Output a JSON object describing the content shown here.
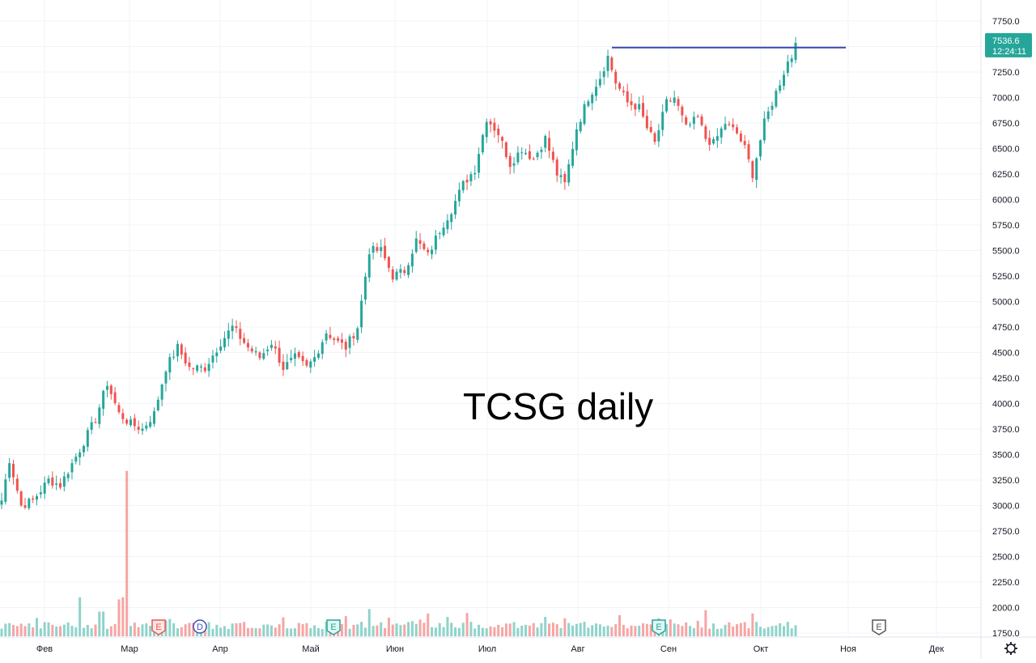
{
  "chart_data": {
    "type": "candlestick",
    "annotation": "TCSG daily",
    "y_axis": {
      "ticks": [
        "7750.0",
        "7500.0",
        "7250.0",
        "7000.0",
        "6750.0",
        "6500.0",
        "6250.0",
        "6000.0",
        "5750.0",
        "5500.0",
        "5250.0",
        "5000.0",
        "4750.0",
        "4500.0",
        "4250.0",
        "4000.0",
        "3750.0",
        "3500.0",
        "3250.0",
        "3000.0",
        "2750.0",
        "2500.0",
        "2250.0",
        "2000.0",
        "1750.0"
      ],
      "range": [
        1700,
        7850
      ],
      "position": "right"
    },
    "x_axis": {
      "ticks": [
        "Фев",
        "Мар",
        "Апр",
        "Май",
        "Июн",
        "Июл",
        "Авг",
        "Сен",
        "Окт",
        "Ноя",
        "Дек"
      ]
    },
    "current_price": {
      "value": "7536.6",
      "time": "12:24:11",
      "color": "#26a69a"
    },
    "resistance_line": {
      "value": 7490,
      "color": "#3949ab"
    },
    "grid": true,
    "colors": {
      "up": "#26a69a",
      "down": "#ef5350",
      "vol_up": "#8fd3ca",
      "vol_down": "#f6a5a4",
      "grid": "#f0f3fa"
    },
    "price_waypoints": [
      [
        0,
        3050
      ],
      [
        2,
        3450
      ],
      [
        5,
        3000
      ],
      [
        8,
        3050
      ],
      [
        12,
        3250
      ],
      [
        15,
        3200
      ],
      [
        20,
        3550
      ],
      [
        24,
        3850
      ],
      [
        27,
        4200
      ],
      [
        30,
        3900
      ],
      [
        33,
        3800
      ],
      [
        36,
        3750
      ],
      [
        39,
        3900
      ],
      [
        42,
        4350
      ],
      [
        45,
        4550
      ],
      [
        48,
        4350
      ],
      [
        52,
        4350
      ],
      [
        56,
        4600
      ],
      [
        59,
        4750
      ],
      [
        63,
        4550
      ],
      [
        66,
        4450
      ],
      [
        69,
        4600
      ],
      [
        72,
        4350
      ],
      [
        75,
        4450
      ],
      [
        78,
        4350
      ],
      [
        80,
        4450
      ],
      [
        83,
        4700
      ],
      [
        86,
        4600
      ],
      [
        88,
        4550
      ],
      [
        91,
        4750
      ],
      [
        94,
        5500
      ],
      [
        97,
        5500
      ],
      [
        100,
        5250
      ],
      [
        103,
        5300
      ],
      [
        106,
        5600
      ],
      [
        109,
        5450
      ],
      [
        112,
        5700
      ],
      [
        115,
        5900
      ],
      [
        118,
        6150
      ],
      [
        121,
        6300
      ],
      [
        124,
        6800
      ],
      [
        127,
        6650
      ],
      [
        130,
        6350
      ],
      [
        133,
        6500
      ],
      [
        136,
        6400
      ],
      [
        139,
        6600
      ],
      [
        142,
        6250
      ],
      [
        144,
        6150
      ],
      [
        147,
        6700
      ],
      [
        150,
        7000
      ],
      [
        153,
        7200
      ],
      [
        155,
        7400
      ],
      [
        157,
        7150
      ],
      [
        160,
        6950
      ],
      [
        163,
        6900
      ],
      [
        165,
        6700
      ],
      [
        167,
        6550
      ],
      [
        170,
        6950
      ],
      [
        172,
        7000
      ],
      [
        175,
        6700
      ],
      [
        178,
        6800
      ],
      [
        180,
        6600
      ],
      [
        182,
        6550
      ],
      [
        185,
        6750
      ],
      [
        188,
        6650
      ],
      [
        190,
        6500
      ],
      [
        192,
        6250
      ],
      [
        195,
        6750
      ],
      [
        198,
        7050
      ],
      [
        201,
        7350
      ],
      [
        203,
        7450
      ]
    ],
    "volume_spike": {
      "index": 32,
      "value": 3340
    }
  }
}
